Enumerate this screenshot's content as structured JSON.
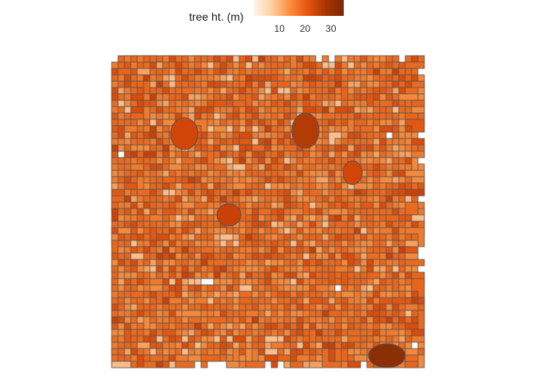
{
  "legend": {
    "title": "tree ht. (m)",
    "ticks": [
      {
        "value": 10,
        "label": "10"
      },
      {
        "value": 20,
        "label": "20"
      },
      {
        "value": 30,
        "label": "30"
      }
    ],
    "range": [
      0,
      35
    ],
    "colors": [
      "#fff5eb",
      "#fdd0a2",
      "#fd8d3c",
      "#e6550d",
      "#a63603",
      "#7f2704"
    ]
  },
  "map": {
    "type": "choropleth",
    "feature": "tree crowns",
    "outline_color": "#555555",
    "seed": 17
  }
}
